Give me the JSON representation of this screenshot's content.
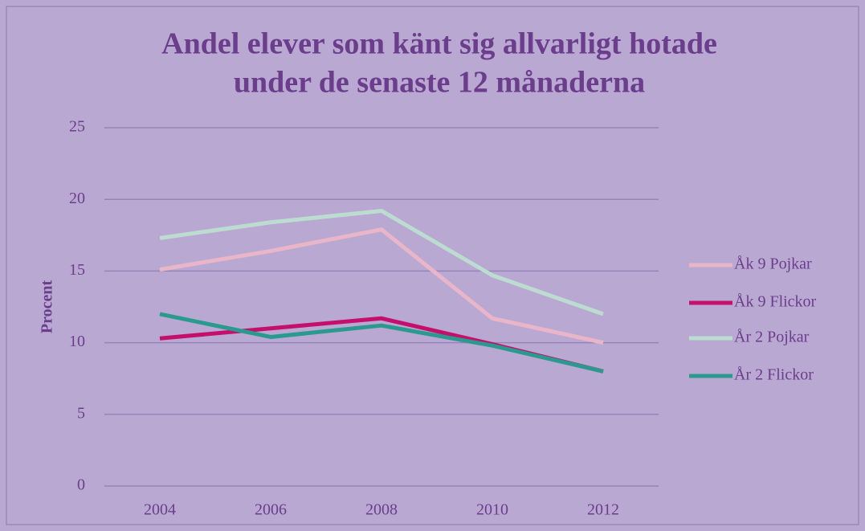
{
  "chart_data": {
    "type": "line",
    "title": [
      "Andel elever som känt sig allvarligt hotade",
      "under de senaste 12 månaderna"
    ],
    "y_label": "Procent",
    "categories": [
      "2004",
      "2006",
      "2008",
      "2010",
      "2012"
    ],
    "series": [
      {
        "name": "Åk 9 Pojkar",
        "color": "#e8b6c8",
        "values": [
          15.1,
          16.4,
          17.9,
          11.7,
          10.0
        ]
      },
      {
        "name": "Åk 9 Flickor",
        "color": "#c4106c",
        "values": [
          10.3,
          11.0,
          11.7,
          9.9,
          8.0
        ]
      },
      {
        "name": "År 2 Pojkar",
        "color": "#bcdcd2",
        "values": [
          17.3,
          18.4,
          19.2,
          14.7,
          12.0
        ]
      },
      {
        "name": "År 2 Flickor",
        "color": "#2a9a8e",
        "values": [
          12.0,
          10.4,
          11.2,
          9.8,
          8.0
        ]
      }
    ],
    "ylim": [
      0,
      25
    ],
    "yticks": [
      0,
      5,
      10,
      15,
      20,
      25
    ],
    "grid": true,
    "legend": "right"
  }
}
